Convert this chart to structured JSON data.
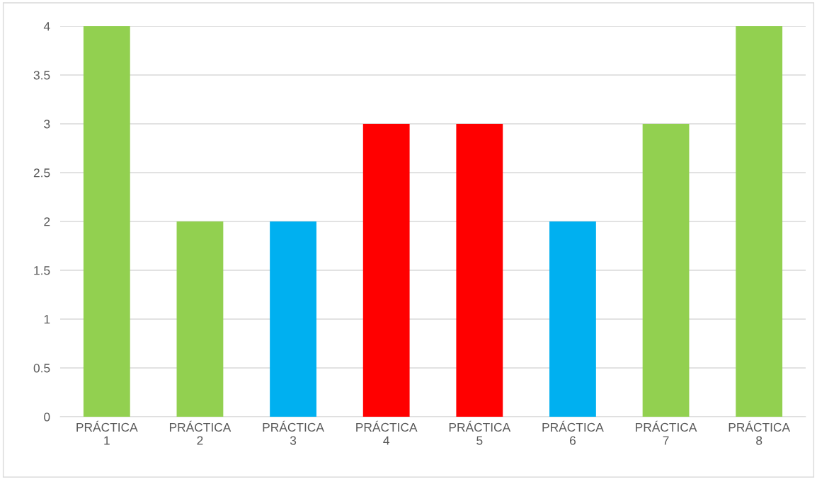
{
  "chart_data": {
    "type": "bar",
    "categories": [
      "PRÁCTICA\n1",
      "PRÁCTICA\n2",
      "PRÁCTICA\n3",
      "PRÁCTICA\n4",
      "PRÁCTICA\n5",
      "PRÁCTICA\n6",
      "PRÁCTICA\n7",
      "PRÁCTICA\n8"
    ],
    "values": [
      4,
      2,
      2,
      3,
      3,
      2,
      3,
      4
    ],
    "colors": [
      "#92d050",
      "#92d050",
      "#00b0f0",
      "#ff0000",
      "#ff0000",
      "#00b0f0",
      "#92d050",
      "#92d050"
    ],
    "ylim": [
      0,
      4
    ],
    "yticks": [
      0,
      0.5,
      1,
      1.5,
      2,
      2.5,
      3,
      3.5,
      4
    ],
    "grid": "y"
  }
}
